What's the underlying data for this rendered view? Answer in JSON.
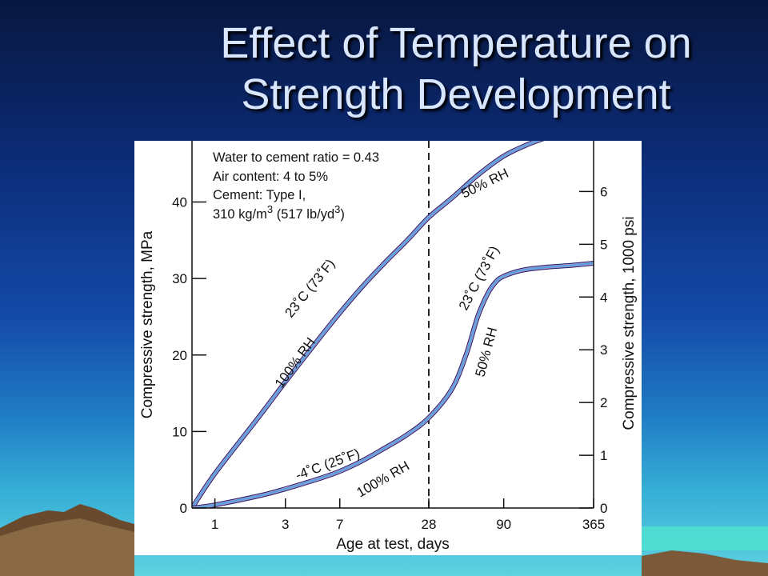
{
  "slide": {
    "title_line1": "Effect of Temperature on",
    "title_line2": "Strength Development"
  },
  "chart_data": {
    "type": "line",
    "xlabel": "Age at test, days",
    "ylabel": "Compressive strength, MPa",
    "ylabel_right": "Compressive strength, 1000 psi",
    "x_scale": "log",
    "x_ticks": [
      1,
      3,
      7,
      28,
      90,
      365
    ],
    "ylim": [
      0,
      48
    ],
    "y_ticks": [
      0,
      10,
      20,
      30,
      40
    ],
    "y_right_ticks": [
      0,
      1,
      2,
      3,
      4,
      5,
      6
    ],
    "reference_line": {
      "x": 28,
      "style": "dashed"
    },
    "annotation_box": [
      "Water to cement ratio = 0.43",
      "Air content: 4 to 5%",
      "Cement: Type I,",
      "310 kg/m",
      "3",
      " (517 lb/yd",
      "3",
      ")"
    ],
    "curve_labels": {
      "upper_temp": "23˚C (73˚F)",
      "upper_rh": "100% RH",
      "upper_after": "50% RH",
      "lower_temp": "-4˚C (25˚F)",
      "lower_rh": "100% RH",
      "lower_after_temp": "23˚C (73˚F)",
      "lower_after_rh": "50% RH"
    },
    "series": [
      {
        "x": [
          0.7,
          1,
          2,
          3,
          5,
          7,
          10,
          14,
          20,
          28,
          40,
          60,
          90,
          130,
          180
        ],
        "y": [
          0,
          4.5,
          12,
          16.5,
          22,
          25.5,
          29,
          32,
          35,
          38,
          40.5,
          43.5,
          46,
          47.5,
          48.5
        ]
      },
      {
        "x": [
          0.7,
          1,
          2,
          3,
          5,
          7,
          10,
          14,
          20,
          28,
          40,
          50,
          60,
          70,
          80,
          90,
          110,
          130,
          180,
          250,
          365
        ],
        "y": [
          0,
          0.4,
          1.6,
          2.5,
          3.8,
          4.8,
          6.2,
          7.8,
          9.6,
          11.8,
          15.5,
          20,
          25,
          28,
          29.6,
          30.3,
          30.9,
          31.2,
          31.5,
          31.7,
          32
        ]
      }
    ]
  }
}
